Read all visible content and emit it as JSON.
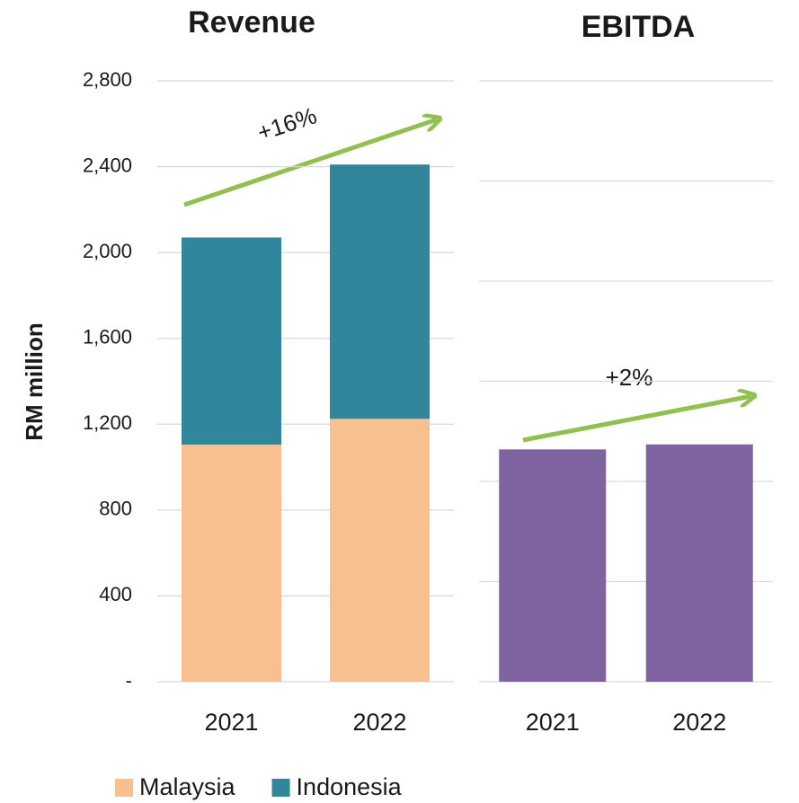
{
  "chart_data": [
    {
      "type": "bar",
      "stacked": true,
      "title": "Revenue",
      "y_label": "RM million",
      "categories": [
        "2021",
        "2022"
      ],
      "series": [
        {
          "name": "Malaysia",
          "color": "#f8c090",
          "values": [
            1105,
            1225
          ]
        },
        {
          "name": "Indonesia",
          "color": "#31869b",
          "values": [
            965,
            1185
          ]
        }
      ],
      "ylim": [
        0,
        2800
      ],
      "yticks": [
        {
          "value": 0,
          "label": "-"
        },
        400,
        800,
        {
          "value": 1200,
          "label": "1,200"
        },
        {
          "value": 1600,
          "label": "1,600"
        },
        {
          "value": 2000,
          "label": "2,000"
        },
        {
          "value": 2400,
          "label": "2,400"
        },
        {
          "value": 2800,
          "label": "2,800"
        }
      ],
      "grid": true,
      "annotation": "+16%",
      "legend": "bottom"
    },
    {
      "type": "bar",
      "title": "EBITDA",
      "categories": [
        "2021",
        "2022"
      ],
      "series": [
        {
          "name": "EBITDA",
          "color": "#8064a2",
          "values": [
            232,
            237
          ]
        }
      ],
      "ylim": [
        0,
        600
      ],
      "yticks": [
        0,
        100,
        200,
        300,
        400,
        500,
        600
      ],
      "ytick_labels": false,
      "grid": true,
      "annotation": "+2%",
      "legend": false
    }
  ]
}
